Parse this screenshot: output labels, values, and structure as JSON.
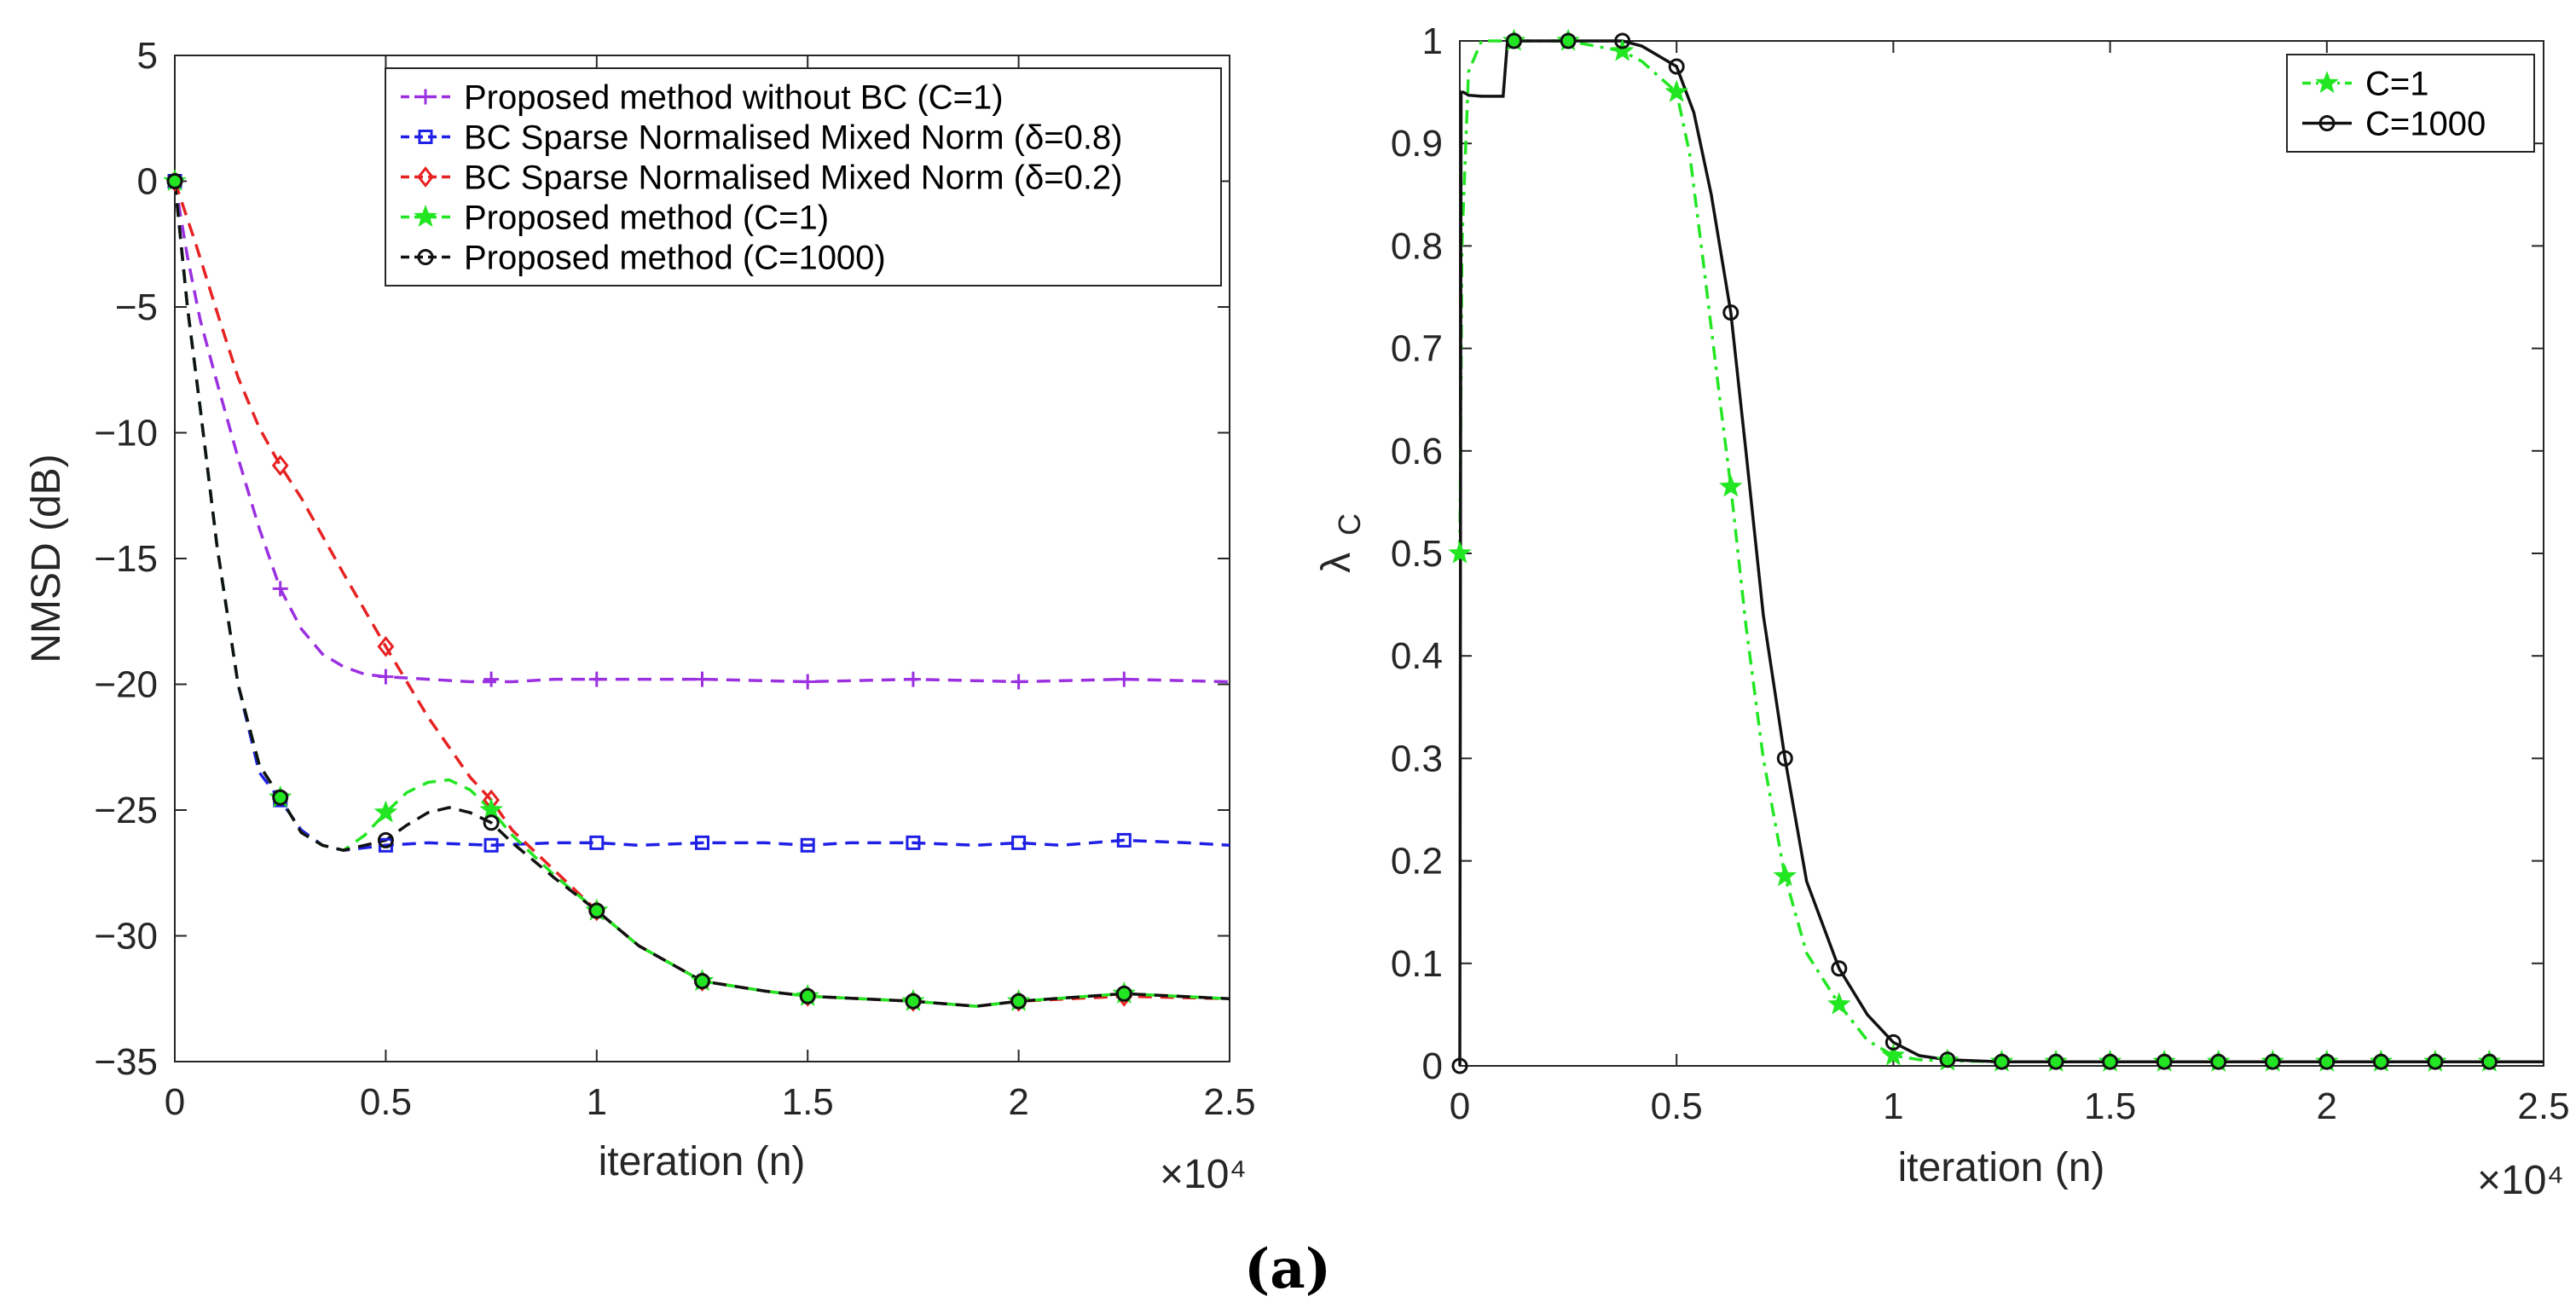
{
  "caption": "(a)",
  "chart_data": [
    {
      "type": "line",
      "title": "",
      "xlabel": "iteration (n)",
      "ylabel": "NMSD (dB)",
      "x_multiplier": "×10⁴",
      "xlim": [
        0,
        2.5
      ],
      "ylim": [
        -35,
        5
      ],
      "xticks": [
        0,
        0.5,
        1,
        1.5,
        2,
        2.5
      ],
      "xtick_labels": [
        "0",
        "0.5",
        "1",
        "1.5",
        "2",
        "2.5"
      ],
      "yticks": [
        -35,
        -30,
        -25,
        -20,
        -15,
        -10,
        -5,
        0,
        5
      ],
      "ytick_labels": [
        "−35",
        "−30",
        "−25",
        "−20",
        "−15",
        "−10",
        "−5",
        "0",
        "5"
      ],
      "grid": false,
      "legend_position": "top-right",
      "series": [
        {
          "name": "Proposed method without BC (C=1)",
          "color": "#9B30E0",
          "dash": "dashed",
          "marker": "plus",
          "x": [
            0,
            0.03,
            0.06,
            0.1,
            0.15,
            0.2,
            0.25,
            0.3,
            0.35,
            0.4,
            0.45,
            0.5,
            0.6,
            0.7,
            0.8,
            0.9,
            1.0,
            1.25,
            1.5,
            1.75,
            2.0,
            2.25,
            2.5
          ],
          "y": [
            0,
            -3,
            -5.5,
            -8,
            -11,
            -13.8,
            -16.2,
            -17.8,
            -18.8,
            -19.3,
            -19.6,
            -19.7,
            -19.8,
            -19.9,
            -19.9,
            -19.8,
            -19.8,
            -19.8,
            -19.9,
            -19.8,
            -19.9,
            -19.8,
            -19.9
          ],
          "marker_x": [
            0,
            0.25,
            0.5,
            0.75,
            1.0,
            1.25,
            1.5,
            1.75,
            2.0,
            2.25
          ],
          "marker_y": [
            0,
            -16.2,
            -19.7,
            -19.8,
            -19.8,
            -19.8,
            -19.9,
            -19.8,
            -19.9,
            -19.8
          ]
        },
        {
          "name": "BC Sparse Normalised Mixed Norm (δ=0.8)",
          "color": "#1F1FE6",
          "dash": "dashed",
          "marker": "square",
          "x": [
            0,
            0.03,
            0.06,
            0.1,
            0.15,
            0.2,
            0.25,
            0.3,
            0.35,
            0.4,
            0.45,
            0.5,
            0.6,
            0.75,
            0.9,
            1.0,
            1.1,
            1.25,
            1.4,
            1.5,
            1.6,
            1.75,
            1.9,
            2.0,
            2.1,
            2.25,
            2.4,
            2.5
          ],
          "y": [
            0,
            -5,
            -9,
            -14.5,
            -20,
            -23.5,
            -24.6,
            -25.8,
            -26.4,
            -26.6,
            -26.5,
            -26.4,
            -26.3,
            -26.4,
            -26.3,
            -26.3,
            -26.4,
            -26.3,
            -26.3,
            -26.4,
            -26.3,
            -26.3,
            -26.4,
            -26.3,
            -26.4,
            -26.2,
            -26.3,
            -26.4
          ],
          "marker_x": [
            0,
            0.25,
            0.5,
            0.75,
            1.0,
            1.25,
            1.5,
            1.75,
            2.0,
            2.25
          ],
          "marker_y": [
            0,
            -24.6,
            -26.4,
            -26.4,
            -26.3,
            -26.3,
            -26.4,
            -26.3,
            -26.3,
            -26.2
          ]
        },
        {
          "name": "BC Sparse Normalised Mixed Norm (δ=0.2)",
          "color": "#E62222",
          "dash": "dashed",
          "marker": "diamond",
          "x": [
            0,
            0.05,
            0.1,
            0.15,
            0.2,
            0.25,
            0.3,
            0.4,
            0.5,
            0.6,
            0.7,
            0.75,
            0.8,
            0.9,
            1.0,
            1.1,
            1.25,
            1.4,
            1.5,
            1.75,
            1.9,
            2.0,
            2.25,
            2.5
          ],
          "y": [
            0,
            -2.5,
            -5.2,
            -7.8,
            -9.8,
            -11.3,
            -12.6,
            -15.6,
            -18.5,
            -21.3,
            -23.7,
            -24.6,
            -25.8,
            -27.4,
            -29.0,
            -30.4,
            -31.8,
            -32.2,
            -32.4,
            -32.6,
            -32.8,
            -32.6,
            -32.4,
            -32.5
          ],
          "marker_x": [
            0,
            0.25,
            0.5,
            0.75,
            1.0,
            1.25,
            1.5,
            1.75,
            2.0,
            2.25
          ],
          "marker_y": [
            0,
            -11.3,
            -18.5,
            -24.6,
            -29.0,
            -31.8,
            -32.4,
            -32.6,
            -32.6,
            -32.4
          ]
        },
        {
          "name": "Proposed method (C=1)",
          "color": "#22E622",
          "dash": "dashed",
          "marker": "star",
          "x": [
            0,
            0.03,
            0.06,
            0.1,
            0.15,
            0.2,
            0.25,
            0.3,
            0.35,
            0.4,
            0.45,
            0.5,
            0.55,
            0.6,
            0.65,
            0.7,
            0.75,
            0.8,
            0.9,
            1.0,
            1.1,
            1.25,
            1.4,
            1.5,
            1.75,
            1.9,
            2.0,
            2.25,
            2.5
          ],
          "y": [
            0,
            -5,
            -9,
            -14.5,
            -20,
            -23.2,
            -24.5,
            -25.9,
            -26.4,
            -26.6,
            -26.0,
            -25.1,
            -24.3,
            -23.9,
            -23.8,
            -24.2,
            -25.0,
            -26.0,
            -27.6,
            -29.0,
            -30.4,
            -31.8,
            -32.2,
            -32.4,
            -32.6,
            -32.8,
            -32.6,
            -32.3,
            -32.5
          ],
          "marker_x": [
            0,
            0.25,
            0.5,
            0.75,
            1.0,
            1.25,
            1.5,
            1.75,
            2.0,
            2.25
          ],
          "marker_y": [
            0,
            -24.5,
            -25.1,
            -25.0,
            -29.0,
            -31.8,
            -32.4,
            -32.6,
            -32.6,
            -32.3
          ]
        },
        {
          "name": "Proposed method (C=1000)",
          "color": "#111111",
          "dash": "dashed",
          "marker": "circle",
          "x": [
            0,
            0.03,
            0.06,
            0.1,
            0.15,
            0.2,
            0.25,
            0.3,
            0.35,
            0.4,
            0.45,
            0.5,
            0.55,
            0.6,
            0.65,
            0.7,
            0.75,
            0.8,
            0.9,
            1.0,
            1.1,
            1.25,
            1.4,
            1.5,
            1.75,
            1.9,
            2.0,
            2.25,
            2.5
          ],
          "y": [
            0,
            -5,
            -9,
            -14.5,
            -20,
            -23.2,
            -24.5,
            -25.9,
            -26.4,
            -26.6,
            -26.4,
            -26.2,
            -25.6,
            -25.1,
            -24.9,
            -25.1,
            -25.5,
            -26.3,
            -27.7,
            -29.0,
            -30.4,
            -31.8,
            -32.2,
            -32.4,
            -32.6,
            -32.8,
            -32.6,
            -32.3,
            -32.5
          ],
          "marker_x": [
            0,
            0.25,
            0.5,
            0.75,
            1.0,
            1.25,
            1.5,
            1.75,
            2.0,
            2.25
          ],
          "marker_y": [
            0,
            -24.5,
            -26.2,
            -25.5,
            -29.0,
            -31.8,
            -32.4,
            -32.6,
            -32.6,
            -32.3
          ]
        }
      ]
    },
    {
      "type": "line",
      "title": "",
      "xlabel": "iteration (n)",
      "ylabel": "λ_C",
      "ylabel_main": "λ",
      "ylabel_sub": "C",
      "x_multiplier": "×10⁴",
      "xlim": [
        0,
        2.5
      ],
      "ylim": [
        0,
        1
      ],
      "xticks": [
        0,
        0.5,
        1,
        1.5,
        2,
        2.5
      ],
      "xtick_labels": [
        "0",
        "0.5",
        "1",
        "1.5",
        "2",
        "2.5"
      ],
      "yticks": [
        0,
        0.1,
        0.2,
        0.3,
        0.4,
        0.5,
        0.6,
        0.7,
        0.8,
        0.9,
        1
      ],
      "ytick_labels": [
        "0",
        "0.1",
        "0.2",
        "0.3",
        "0.4",
        "0.5",
        "0.6",
        "0.7",
        "0.8",
        "0.9",
        "1"
      ],
      "grid": false,
      "legend_position": "top-right",
      "series": [
        {
          "name": "C=1",
          "color": "#22E622",
          "dash": "dashdot",
          "marker": "star",
          "x": [
            0,
            0.005,
            0.02,
            0.05,
            0.1,
            0.125,
            0.25,
            0.375,
            0.42,
            0.46,
            0.5,
            0.53,
            0.56,
            0.6,
            0.625,
            0.66,
            0.7,
            0.75,
            0.8,
            0.875,
            0.94,
            1.0,
            1.06,
            1.125,
            1.25,
            1.5,
            2.0,
            2.5
          ],
          "y": [
            0.5,
            0.8,
            0.97,
            1.0,
            1.0,
            1.0,
            1.0,
            0.99,
            0.98,
            0.965,
            0.95,
            0.89,
            0.79,
            0.65,
            0.565,
            0.43,
            0.3,
            0.185,
            0.11,
            0.06,
            0.025,
            0.01,
            0.006,
            0.005,
            0.004,
            0.004,
            0.004,
            0.004
          ],
          "marker_x": [
            0,
            0.125,
            0.25,
            0.375,
            0.5,
            0.625,
            0.75,
            0.875,
            1.0,
            1.125,
            1.25,
            1.375,
            1.5,
            1.625,
            1.75,
            1.875,
            2.0,
            2.125,
            2.25,
            2.375
          ],
          "marker_y": [
            0.5,
            1.0,
            1.0,
            0.99,
            0.95,
            0.565,
            0.185,
            0.06,
            0.01,
            0.005,
            0.004,
            0.004,
            0.004,
            0.004,
            0.004,
            0.004,
            0.004,
            0.004,
            0.004,
            0.004
          ]
        },
        {
          "name": "C=1000",
          "color": "#111111",
          "dash": "solid",
          "marker": "circle",
          "x": [
            0,
            0.003,
            0.008,
            0.02,
            0.05,
            0.1,
            0.11,
            0.125,
            0.25,
            0.375,
            0.42,
            0.46,
            0.5,
            0.54,
            0.58,
            0.625,
            0.66,
            0.7,
            0.75,
            0.8,
            0.875,
            0.94,
            1.0,
            1.06,
            1.125,
            1.25,
            1.5,
            2.0,
            2.5
          ],
          "y": [
            0,
            0.95,
            0.95,
            0.947,
            0.946,
            0.946,
            1.0,
            1.0,
            1.0,
            1.0,
            0.995,
            0.985,
            0.975,
            0.93,
            0.85,
            0.735,
            0.6,
            0.44,
            0.3,
            0.18,
            0.095,
            0.05,
            0.023,
            0.01,
            0.006,
            0.004,
            0.004,
            0.004,
            0.004
          ],
          "marker_x": [
            0,
            0.125,
            0.25,
            0.375,
            0.5,
            0.625,
            0.75,
            0.875,
            1.0,
            1.125,
            1.25,
            1.375,
            1.5,
            1.625,
            1.75,
            1.875,
            2.0,
            2.125,
            2.25,
            2.375
          ],
          "marker_y": [
            0,
            1.0,
            1.0,
            1.0,
            0.975,
            0.735,
            0.3,
            0.095,
            0.023,
            0.006,
            0.004,
            0.004,
            0.004,
            0.004,
            0.004,
            0.004,
            0.004,
            0.004,
            0.004,
            0.004
          ]
        }
      ]
    }
  ]
}
